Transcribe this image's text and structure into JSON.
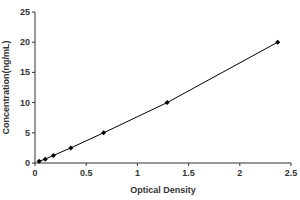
{
  "chart_data": {
    "type": "line",
    "x_label": "Optical Density",
    "y_label": "Concentration(ng/mL)",
    "x": [
      0.04,
      0.1,
      0.18,
      0.35,
      0.67,
      1.29,
      2.37
    ],
    "values": [
      0.31,
      0.63,
      1.25,
      2.5,
      5,
      10,
      20
    ],
    "xlim": [
      0,
      2.5
    ],
    "xticks": [
      0,
      0.5,
      1,
      1.5,
      2,
      2.5
    ],
    "ylim": [
      0,
      25
    ],
    "yticks": [
      0,
      5,
      10,
      15,
      20,
      25
    ],
    "color": "#000000",
    "marker": "diamond",
    "line_style": "solid",
    "grid": false
  }
}
